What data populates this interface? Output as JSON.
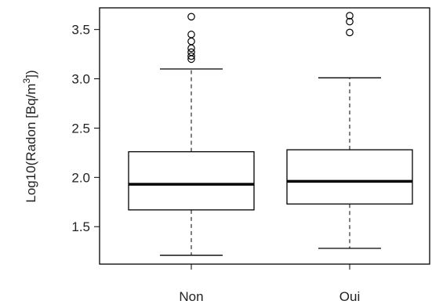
{
  "chart_data": {
    "type": "box",
    "title": "",
    "xlabel": "",
    "ylabel": "Log10(Radon [Bq/m",
    "ylabel_superscript": "3",
    "ylabel_suffix": "])",
    "ylim": [
      1.12,
      3.72
    ],
    "yticks": [
      1.5,
      2.0,
      2.5,
      3.0,
      3.5
    ],
    "ytick_labels": [
      "1.5",
      "2.0",
      "2.5",
      "3.0",
      "3.5"
    ],
    "categories": [
      "Non",
      "Oui"
    ],
    "boxes": [
      {
        "category": "Non",
        "whisker_low": 1.21,
        "q1": 1.67,
        "median": 1.93,
        "q3": 2.26,
        "whisker_high": 3.1,
        "outliers": [
          3.2,
          3.23,
          3.27,
          3.31,
          3.38,
          3.45,
          3.63
        ]
      },
      {
        "category": "Oui",
        "whisker_low": 1.28,
        "q1": 1.73,
        "median": 1.96,
        "q3": 2.28,
        "whisker_high": 3.01,
        "outliers": [
          3.47,
          3.58,
          3.64
        ]
      }
    ],
    "colors": {
      "stroke": "#000000",
      "box_fill": "#ffffff",
      "text": "#222222"
    },
    "grid": false,
    "legend": "none"
  }
}
